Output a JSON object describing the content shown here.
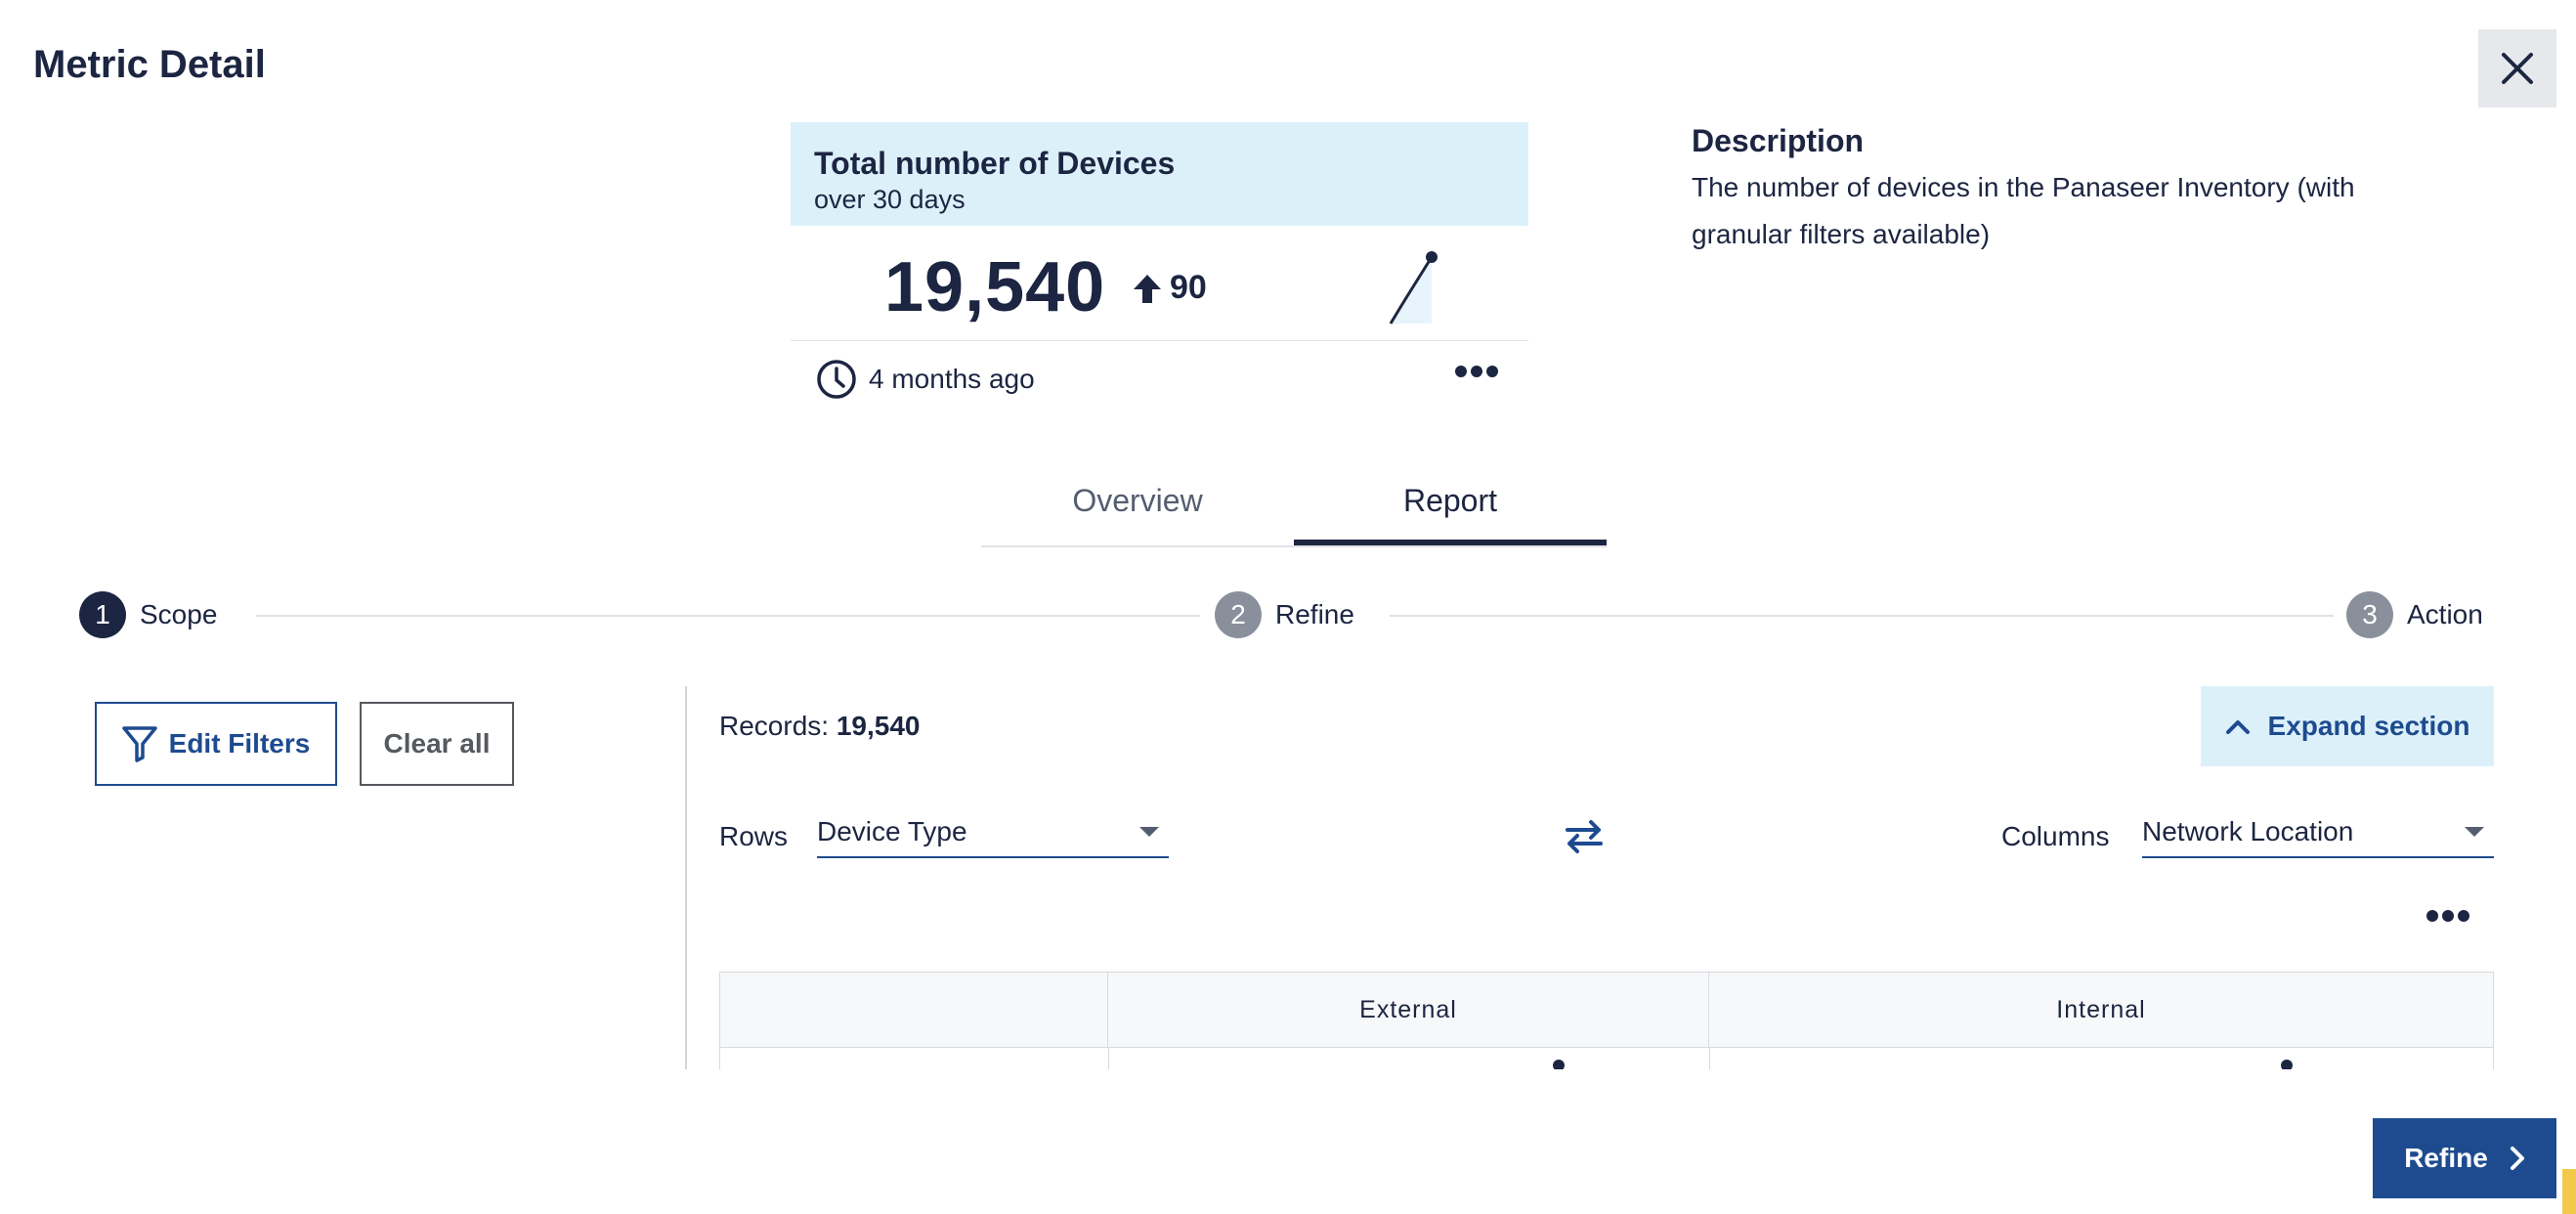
{
  "modal": {
    "title": "Metric Detail"
  },
  "metric_card": {
    "title": "Total number of Devices",
    "subtitle": "over 30 days",
    "value": "19,540",
    "change_value": "90",
    "change_direction": "up",
    "last_updated": "4 months ago"
  },
  "description": {
    "title": "Description",
    "text": "The number of devices in the Panaseer Inventory (with granular filters available)"
  },
  "tabs": [
    {
      "label": "Overview",
      "active": false
    },
    {
      "label": "Report",
      "active": true
    }
  ],
  "stepper": [
    {
      "number": "1",
      "label": "Scope",
      "active": true
    },
    {
      "number": "2",
      "label": "Refine",
      "active": false
    },
    {
      "number": "3",
      "label": "Action",
      "active": false
    }
  ],
  "filters": {
    "edit_label": "Edit Filters",
    "clear_label": "Clear all"
  },
  "report": {
    "records_label": "Records:",
    "records_value": "19,540",
    "expand_label": "Expand section",
    "rows_label": "Rows",
    "rows_value": "Device Type",
    "columns_label": "Columns",
    "columns_value": "Network Location",
    "table_headers": [
      "",
      "External",
      "Internal"
    ]
  },
  "footer": {
    "refine_label": "Refine"
  },
  "colors": {
    "primary": "#1e4b8f",
    "navy": "#1c2541",
    "card_header_bg": "#dcf0fa",
    "step_inactive": "#8a8f9c",
    "accent_yellow": "#f3c94c"
  },
  "icons": {
    "close": "close-icon",
    "arrow_up": "arrow-up-icon",
    "sparkline": "sparkline-icon",
    "clock": "clock-icon",
    "more": "more-horizontal-icon",
    "filter": "filter-icon",
    "chevron_up": "chevron-up-icon",
    "chevron_down": "caret-down-icon",
    "swap": "swap-icon",
    "chevron_right": "chevron-right-icon"
  }
}
